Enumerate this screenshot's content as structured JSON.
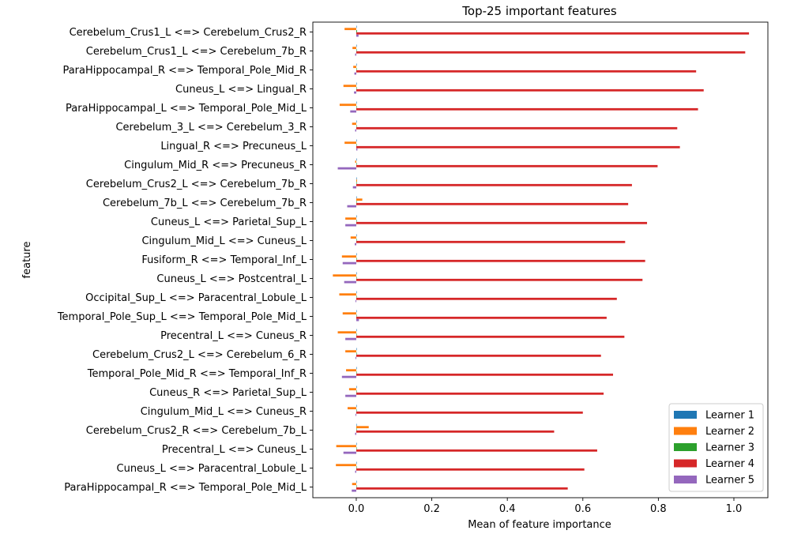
{
  "chart_data": {
    "type": "bar",
    "orientation": "horizontal",
    "title": "Top-25 important features",
    "xlabel": "Mean of feature importance",
    "ylabel": "feature",
    "xlim": [
      -0.115,
      1.09
    ],
    "xticks": [
      0.0,
      0.2,
      0.4,
      0.6,
      0.8,
      1.0
    ],
    "xtick_labels": [
      "0.0",
      "0.2",
      "0.4",
      "0.6",
      "0.8",
      "1.0"
    ],
    "legend_position": "lower right",
    "grid": false,
    "categories": [
      "Cerebelum_Crus1_L <=> Cerebelum_Crus2_R",
      "Cerebelum_Crus1_L <=> Cerebelum_7b_R",
      "ParaHippocampal_R <=> Temporal_Pole_Mid_R",
      "Cuneus_L <=> Lingual_R",
      "ParaHippocampal_L <=> Temporal_Pole_Mid_L",
      "Cerebelum_3_L <=> Cerebelum_3_R",
      "Lingual_R <=> Precuneus_L",
      "Cingulum_Mid_R <=> Precuneus_R",
      "Cerebelum_Crus2_L <=> Cerebelum_7b_R",
      "Cerebelum_7b_L <=> Cerebelum_7b_R",
      "Cuneus_L <=> Parietal_Sup_L",
      "Cingulum_Mid_L <=> Cuneus_L",
      "Fusiform_R <=> Temporal_Inf_L",
      "Cuneus_L <=> Postcentral_L",
      "Occipital_Sup_L <=> Paracentral_Lobule_L",
      "Temporal_Pole_Sup_L <=> Temporal_Pole_Mid_L",
      "Precentral_L <=> Cuneus_R",
      "Cerebelum_Crus2_L <=> Cerebelum_6_R",
      "Temporal_Pole_Mid_R <=> Temporal_Inf_R",
      "Cuneus_R <=> Parietal_Sup_L",
      "Cingulum_Mid_L <=> Cuneus_R",
      "Cerebelum_Crus2_R <=> Cerebelum_7b_L",
      "Precentral_L <=> Cuneus_L",
      "Cuneus_L <=> Paracentral_Lobule_L",
      "ParaHippocampal_R <=> Temporal_Pole_Mid_L"
    ],
    "series": [
      {
        "name": "Learner 1",
        "color": "#1f77b4",
        "values": [
          0.001,
          0.0,
          0.0,
          0.0,
          0.0,
          0.0,
          0.0,
          0.0,
          0.0,
          0.0,
          0.0,
          0.0,
          0.0,
          0.0,
          0.0,
          0.0,
          0.0,
          0.0,
          0.0,
          0.0,
          0.0,
          0.0,
          0.0,
          0.0,
          0.0
        ]
      },
      {
        "name": "Learner 2",
        "color": "#ff7f0e",
        "values": [
          -0.031,
          -0.01,
          -0.008,
          -0.034,
          -0.044,
          -0.011,
          -0.031,
          -0.003,
          0.002,
          0.016,
          -0.029,
          -0.015,
          -0.038,
          -0.062,
          -0.045,
          -0.036,
          -0.049,
          -0.029,
          -0.027,
          -0.019,
          -0.023,
          0.033,
          -0.053,
          -0.054,
          -0.011
        ]
      },
      {
        "name": "Learner 3",
        "color": "#2ca02c",
        "values": [
          0.002,
          0.001,
          0.001,
          0.001,
          0.001,
          0.001,
          0.001,
          0.001,
          0.001,
          0.001,
          0.001,
          0.001,
          0.001,
          0.001,
          0.001,
          0.001,
          0.001,
          0.001,
          0.001,
          0.001,
          0.001,
          0.001,
          0.001,
          0.001,
          0.001
        ]
      },
      {
        "name": "Learner 4",
        "color": "#d62728",
        "values": [
          1.04,
          1.03,
          0.9,
          0.92,
          0.905,
          0.85,
          0.857,
          0.798,
          0.73,
          0.72,
          0.77,
          0.712,
          0.765,
          0.758,
          0.69,
          0.663,
          0.71,
          0.648,
          0.68,
          0.655,
          0.6,
          0.524,
          0.638,
          0.604,
          0.56
        ]
      },
      {
        "name": "Learner 5",
        "color": "#9467bd",
        "values": [
          0.006,
          -0.003,
          -0.005,
          -0.006,
          -0.016,
          -0.003,
          0.003,
          -0.049,
          -0.009,
          -0.024,
          -0.029,
          -0.004,
          -0.036,
          -0.032,
          -0.002,
          0.007,
          -0.029,
          -0.002,
          -0.038,
          -0.029,
          -0.002,
          -0.003,
          -0.034,
          -0.003,
          -0.012
        ]
      }
    ]
  }
}
